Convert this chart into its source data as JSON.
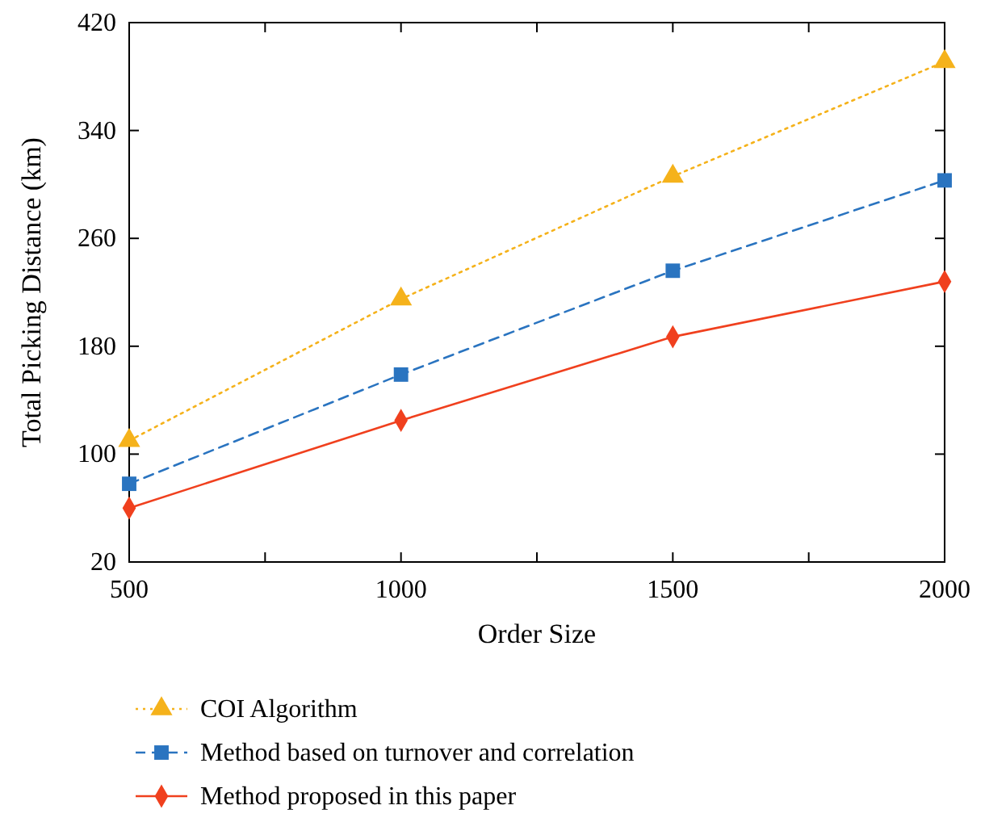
{
  "chart_data": {
    "type": "line",
    "xlabel": "Order Size",
    "ylabel": "Total Picking Distance (km)",
    "x": [
      500,
      1000,
      1500,
      2000
    ],
    "xlim": [
      500,
      2000
    ],
    "xticks": [
      500,
      {
        "value": 750,
        "label": null
      },
      1000,
      {
        "value": 1250,
        "label": null
      },
      1500,
      {
        "value": 1750,
        "label": null
      },
      2000
    ],
    "ylim": [
      20,
      420
    ],
    "yticks": [
      20,
      100,
      180,
      260,
      340,
      420
    ],
    "grid": false,
    "legend": "bottom",
    "series": [
      {
        "name": "COI Algorithm",
        "color": "#f5b21b",
        "marker": "triangle",
        "line_style": "dotted",
        "values": [
          110,
          215,
          306,
          391
        ]
      },
      {
        "name": "Method based on turnover and correlation",
        "color": "#2a74c0",
        "marker": "square",
        "line_style": "dashed",
        "values": [
          78,
          159,
          236,
          303
        ]
      },
      {
        "name": "Method proposed in this paper",
        "color": "#f0401e",
        "marker": "diamond",
        "line_style": "solid",
        "values": [
          60,
          125,
          187,
          228
        ]
      }
    ]
  }
}
